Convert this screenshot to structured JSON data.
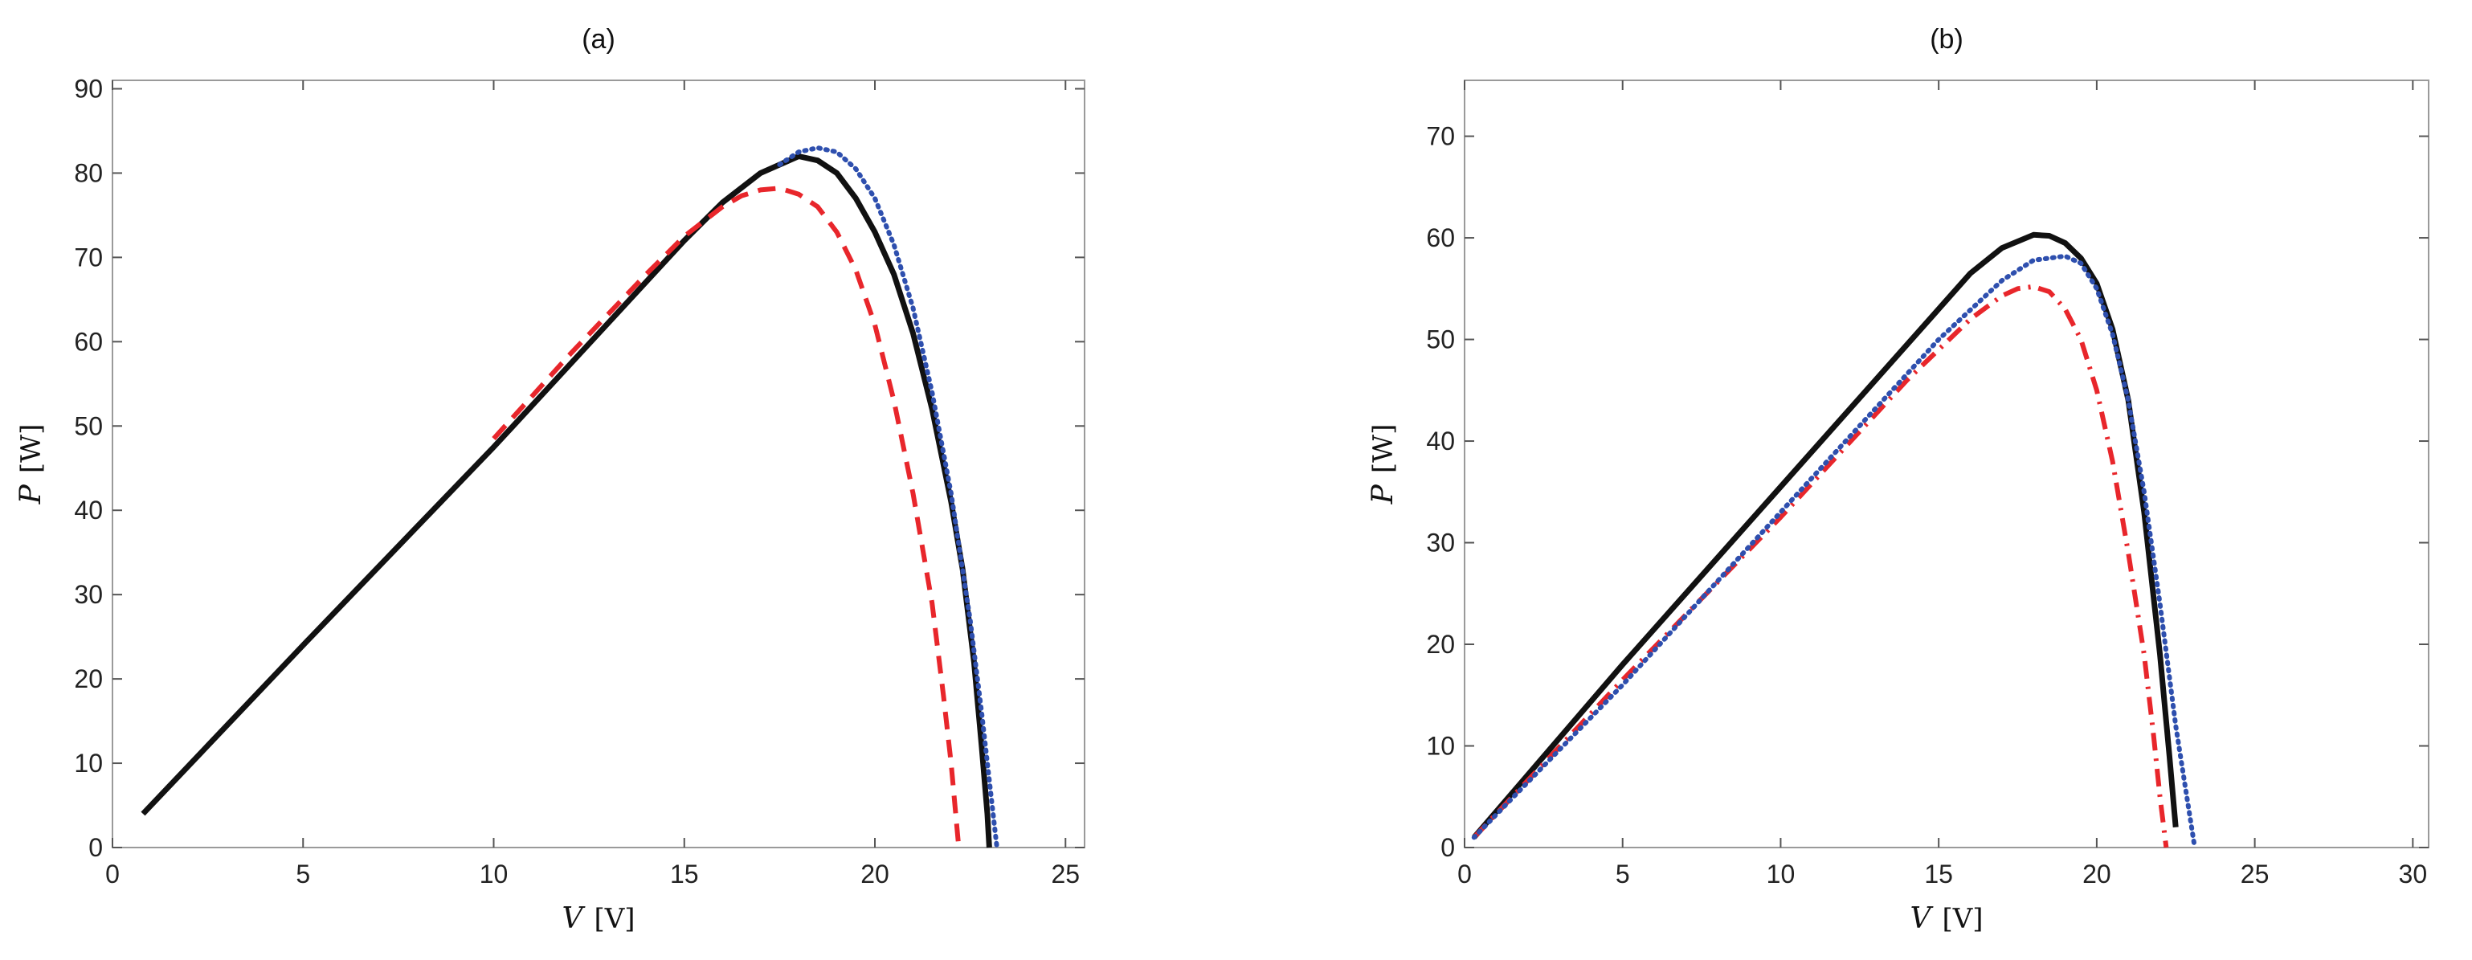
{
  "chart_data": [
    {
      "type": "line",
      "title": "(a)",
      "xlabel": {
        "var": "V",
        "unit": "[V]"
      },
      "ylabel": {
        "var": "P",
        "unit": "[W]"
      },
      "xlim": [
        0,
        25.5
      ],
      "ylim": [
        0,
        91
      ],
      "xticks": [
        0,
        5,
        10,
        15,
        20,
        25
      ],
      "yticks": [
        0,
        10,
        20,
        30,
        40,
        50,
        60,
        70,
        80,
        90
      ],
      "grid": false,
      "series": [
        {
          "style": "solid-thick",
          "color": "#111111",
          "points": [
            [
              0.8,
              4
            ],
            [
              5,
              24
            ],
            [
              10,
              47.5
            ],
            [
              15,
              72
            ],
            [
              16,
              76.5
            ],
            [
              17,
              80
            ],
            [
              18,
              82
            ],
            [
              18.5,
              81.5
            ],
            [
              19,
              80
            ],
            [
              19.5,
              77
            ],
            [
              20,
              73
            ],
            [
              20.5,
              68
            ],
            [
              21,
              61
            ],
            [
              21.5,
              52
            ],
            [
              22,
              41
            ],
            [
              22.3,
              33
            ],
            [
              22.6,
              22
            ],
            [
              22.8,
              12
            ],
            [
              22.95,
              4
            ],
            [
              23.0,
              0
            ]
          ]
        },
        {
          "style": "dashed",
          "color": "#e8262b",
          "points": [
            [
              10,
              48.5
            ],
            [
              12,
              58.5
            ],
            [
              14,
              68
            ],
            [
              15,
              72.5
            ],
            [
              16,
              76
            ],
            [
              16.5,
              77.3
            ],
            [
              17,
              78
            ],
            [
              17.5,
              78.2
            ],
            [
              18,
              77.5
            ],
            [
              18.5,
              76
            ],
            [
              19,
              73
            ],
            [
              19.5,
              68.5
            ],
            [
              20,
              62
            ],
            [
              20.5,
              53
            ],
            [
              21,
              42
            ],
            [
              21.5,
              29
            ],
            [
              21.8,
              18
            ],
            [
              22.0,
              10
            ],
            [
              22.2,
              0
            ]
          ]
        },
        {
          "style": "dotted",
          "color": "#2e4fae",
          "points": [
            [
              17.5,
              81
            ],
            [
              18,
              82.5
            ],
            [
              18.5,
              83
            ],
            [
              19,
              82.5
            ],
            [
              19.5,
              80.5
            ],
            [
              20,
              77
            ],
            [
              20.5,
              71.5
            ],
            [
              21,
              64
            ],
            [
              21.5,
              54
            ],
            [
              22,
              42
            ],
            [
              22.5,
              27
            ],
            [
              22.8,
              16
            ],
            [
              23.0,
              8
            ],
            [
              23.2,
              0
            ]
          ]
        }
      ]
    },
    {
      "type": "line",
      "title": "(b)",
      "xlabel": {
        "var": "V",
        "unit": "[V]"
      },
      "ylabel": {
        "var": "P",
        "unit": "[W]"
      },
      "xlim": [
        0,
        30.5
      ],
      "ylim": [
        0,
        75.5
      ],
      "xticks": [
        0,
        5,
        10,
        15,
        20,
        25,
        30
      ],
      "yticks": [
        0,
        10,
        20,
        30,
        40,
        50,
        60,
        70
      ],
      "grid": false,
      "series": [
        {
          "style": "solid-thick",
          "color": "#111111",
          "points": [
            [
              0.3,
              1
            ],
            [
              5,
              18
            ],
            [
              10,
              35.5
            ],
            [
              15,
              53
            ],
            [
              16,
              56.5
            ],
            [
              17,
              59
            ],
            [
              18,
              60.3
            ],
            [
              18.5,
              60.2
            ],
            [
              19,
              59.5
            ],
            [
              19.5,
              58
            ],
            [
              20,
              55.5
            ],
            [
              20.5,
              51
            ],
            [
              21,
              44
            ],
            [
              21.5,
              33
            ],
            [
              22,
              19
            ],
            [
              22.3,
              9
            ],
            [
              22.5,
              2
            ]
          ]
        },
        {
          "style": "dash-dot",
          "color": "#e8262b",
          "points": [
            [
              0.3,
              1
            ],
            [
              5,
              16.5
            ],
            [
              10,
              32.5
            ],
            [
              14,
              46
            ],
            [
              16,
              52
            ],
            [
              17,
              54.3
            ],
            [
              17.5,
              55
            ],
            [
              18,
              55.2
            ],
            [
              18.5,
              54.7
            ],
            [
              19,
              53
            ],
            [
              19.5,
              50
            ],
            [
              20,
              45
            ],
            [
              20.5,
              38
            ],
            [
              21,
              29
            ],
            [
              21.5,
              19
            ],
            [
              21.8,
              11
            ],
            [
              22.0,
              5
            ],
            [
              22.2,
              0
            ]
          ]
        },
        {
          "style": "dotted",
          "color": "#2e4fae",
          "points": [
            [
              0.3,
              1
            ],
            [
              5,
              16
            ],
            [
              10,
              33
            ],
            [
              15,
              50
            ],
            [
              17,
              55.8
            ],
            [
              18,
              57.8
            ],
            [
              19,
              58.2
            ],
            [
              19.5,
              57.5
            ],
            [
              20,
              55
            ],
            [
              20.5,
              50.5
            ],
            [
              21,
              44
            ],
            [
              21.5,
              35
            ],
            [
              22,
              24
            ],
            [
              22.5,
              12
            ],
            [
              22.9,
              4
            ],
            [
              23.1,
              0
            ]
          ]
        }
      ]
    }
  ]
}
